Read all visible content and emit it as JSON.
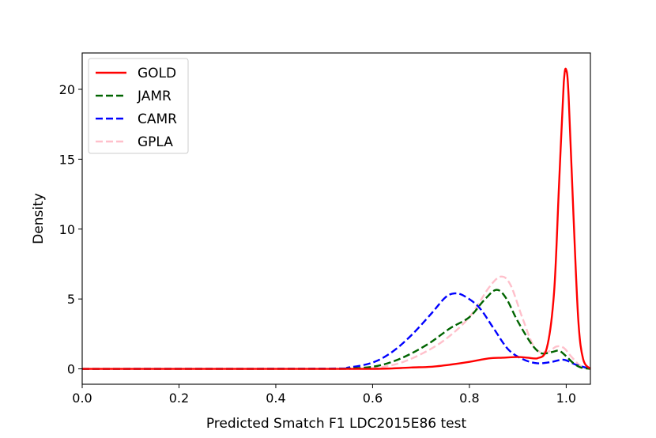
{
  "chart_data": {
    "type": "line",
    "title": "",
    "xlabel": "Predicted Smatch F1 LDC2015E86 test",
    "ylabel": "Density",
    "xlim": [
      0.0,
      1.05
    ],
    "ylim": [
      -1.1,
      22.6
    ],
    "xticks": [
      0.0,
      0.2,
      0.4,
      0.6,
      0.8,
      1.0
    ],
    "xtick_labels": [
      "0.0",
      "0.2",
      "0.4",
      "0.6",
      "0.8",
      "1.0"
    ],
    "yticks": [
      0,
      5,
      10,
      15,
      20
    ],
    "ytick_labels": [
      "0",
      "5",
      "10",
      "15",
      "20"
    ],
    "grid": false,
    "legend_position": "top-left",
    "series": [
      {
        "name": "GOLD",
        "color": "#ff0000",
        "style": "solid",
        "x": [
          0.0,
          0.5,
          0.6,
          0.64,
          0.68,
          0.72,
          0.76,
          0.8,
          0.84,
          0.87,
          0.9,
          0.92,
          0.94,
          0.96,
          0.975,
          0.985,
          0.995,
          1.0,
          1.005,
          1.015,
          1.025,
          1.035,
          1.05
        ],
        "y": [
          0.0,
          0.0,
          0.0,
          0.03,
          0.1,
          0.15,
          0.3,
          0.5,
          0.75,
          0.8,
          0.85,
          0.8,
          0.75,
          1.5,
          5.5,
          13.0,
          20.5,
          21.4,
          19.5,
          11.0,
          3.5,
          0.7,
          0.0
        ]
      },
      {
        "name": "JAMR",
        "color": "#006400",
        "style": "dashed",
        "x": [
          0.0,
          0.5,
          0.55,
          0.6,
          0.64,
          0.68,
          0.72,
          0.76,
          0.8,
          0.83,
          0.855,
          0.875,
          0.9,
          0.93,
          0.95,
          0.97,
          0.985,
          1.0,
          1.015,
          1.03,
          1.05
        ],
        "y": [
          0.0,
          0.0,
          0.03,
          0.15,
          0.5,
          1.1,
          1.9,
          2.9,
          3.7,
          4.9,
          5.65,
          5.1,
          3.4,
          1.7,
          1.1,
          1.2,
          1.3,
          0.9,
          0.4,
          0.1,
          0.0
        ]
      },
      {
        "name": "CAMR",
        "color": "#0000ff",
        "style": "dashed",
        "x": [
          0.0,
          0.5,
          0.55,
          0.6,
          0.64,
          0.68,
          0.72,
          0.75,
          0.77,
          0.79,
          0.82,
          0.85,
          0.88,
          0.91,
          0.94,
          0.97,
          0.995,
          1.02,
          1.05
        ],
        "y": [
          0.0,
          0.02,
          0.1,
          0.45,
          1.2,
          2.4,
          3.9,
          5.1,
          5.4,
          5.2,
          4.4,
          2.9,
          1.4,
          0.7,
          0.4,
          0.5,
          0.65,
          0.3,
          0.0
        ]
      },
      {
        "name": "GPLA",
        "color": "#ffc0cb",
        "style": "dashed",
        "x": [
          0.0,
          0.55,
          0.6,
          0.65,
          0.7,
          0.75,
          0.8,
          0.84,
          0.865,
          0.885,
          0.91,
          0.935,
          0.96,
          0.98,
          0.995,
          1.01,
          1.03,
          1.05
        ],
        "y": [
          0.0,
          0.0,
          0.05,
          0.35,
          1.05,
          2.1,
          3.7,
          5.8,
          6.6,
          6.0,
          3.6,
          1.5,
          1.2,
          1.6,
          1.5,
          0.9,
          0.2,
          0.0
        ]
      }
    ]
  }
}
